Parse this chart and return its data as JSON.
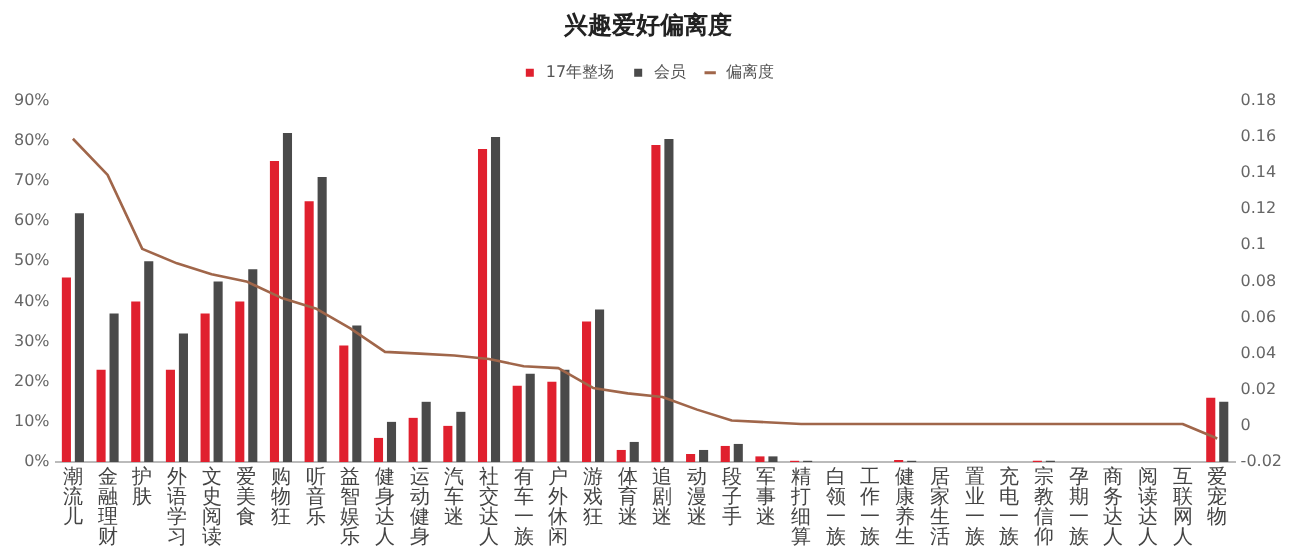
{
  "chart_data": {
    "type": "bar",
    "title": "兴趣爱好偏离度",
    "categories": [
      "潮流儿",
      "金融理财",
      "护肤",
      "外语学习",
      "文史阅读",
      "爱美食",
      "购物狂",
      "听音乐",
      "益智娱乐",
      "健身达人",
      "运动健身",
      "汽车迷",
      "社交达人",
      "有车一族",
      "户外休闲",
      "游戏狂",
      "体育迷",
      "追剧迷",
      "动漫迷",
      "段子手",
      "军事迷",
      "精打细算",
      "白领一族",
      "工作一族",
      "健康养生",
      "居家生活",
      "置业一族",
      "充电一族",
      "宗教信仰",
      "孕期一族",
      "商务达人",
      "阅读达人",
      "互联网人",
      "爱宠物"
    ],
    "series": [
      {
        "name": "17年整场",
        "color": "#e0202e",
        "values": [
          46,
          23,
          40,
          23,
          37,
          40,
          75,
          65,
          29,
          6,
          11,
          9,
          78,
          19,
          20,
          35,
          3,
          79,
          2,
          4,
          1.4,
          0.3,
          0,
          0,
          0.5,
          0,
          0,
          0,
          0.3,
          0,
          0,
          0,
          0,
          16
        ]
      },
      {
        "name": "会员",
        "color": "#4a4a4a",
        "values": [
          62,
          37,
          50,
          32,
          45,
          48,
          82,
          71,
          34,
          10,
          15,
          12.5,
          81,
          22,
          23,
          38,
          5,
          80.5,
          3,
          4.5,
          1.4,
          0.3,
          0,
          0,
          0.3,
          0,
          0,
          0,
          0.3,
          0,
          0,
          0,
          0,
          15
        ]
      },
      {
        "name": "偏离度",
        "type": "line",
        "axis": "y2",
        "color": "#a0664a",
        "marker": "none",
        "values": [
          0.159,
          0.139,
          0.098,
          0.09,
          0.084,
          0.08,
          0.071,
          0.065,
          0.054,
          0.041,
          0.04,
          0.039,
          0.037,
          0.033,
          0.032,
          0.021,
          0.018,
          0.016,
          0.009,
          0.003,
          0.002,
          0.001,
          0.001,
          0.001,
          0.001,
          0.001,
          0.001,
          0.001,
          0.001,
          0.001,
          0.001,
          0.001,
          0.001,
          -0.007
        ]
      }
    ],
    "ylim": [
      0,
      90
    ],
    "yticks": [
      {
        "value": 0,
        "label": "0%"
      },
      {
        "value": 10,
        "label": "10%"
      },
      {
        "value": 20,
        "label": "20%"
      },
      {
        "value": 30,
        "label": "30%"
      },
      {
        "value": 40,
        "label": "40%"
      },
      {
        "value": 50,
        "label": "50%"
      },
      {
        "value": 60,
        "label": "60%"
      },
      {
        "value": 70,
        "label": "70%"
      },
      {
        "value": 80,
        "label": "80%"
      },
      {
        "value": 90,
        "label": "90%"
      }
    ],
    "y2lim": [
      -0.02,
      0.18
    ],
    "y2ticks": [
      -0.02,
      0,
      0.02,
      0.04,
      0.06,
      0.08,
      0.1,
      0.12,
      0.14,
      0.16,
      0.18
    ],
    "grid": false,
    "legend": "top"
  }
}
